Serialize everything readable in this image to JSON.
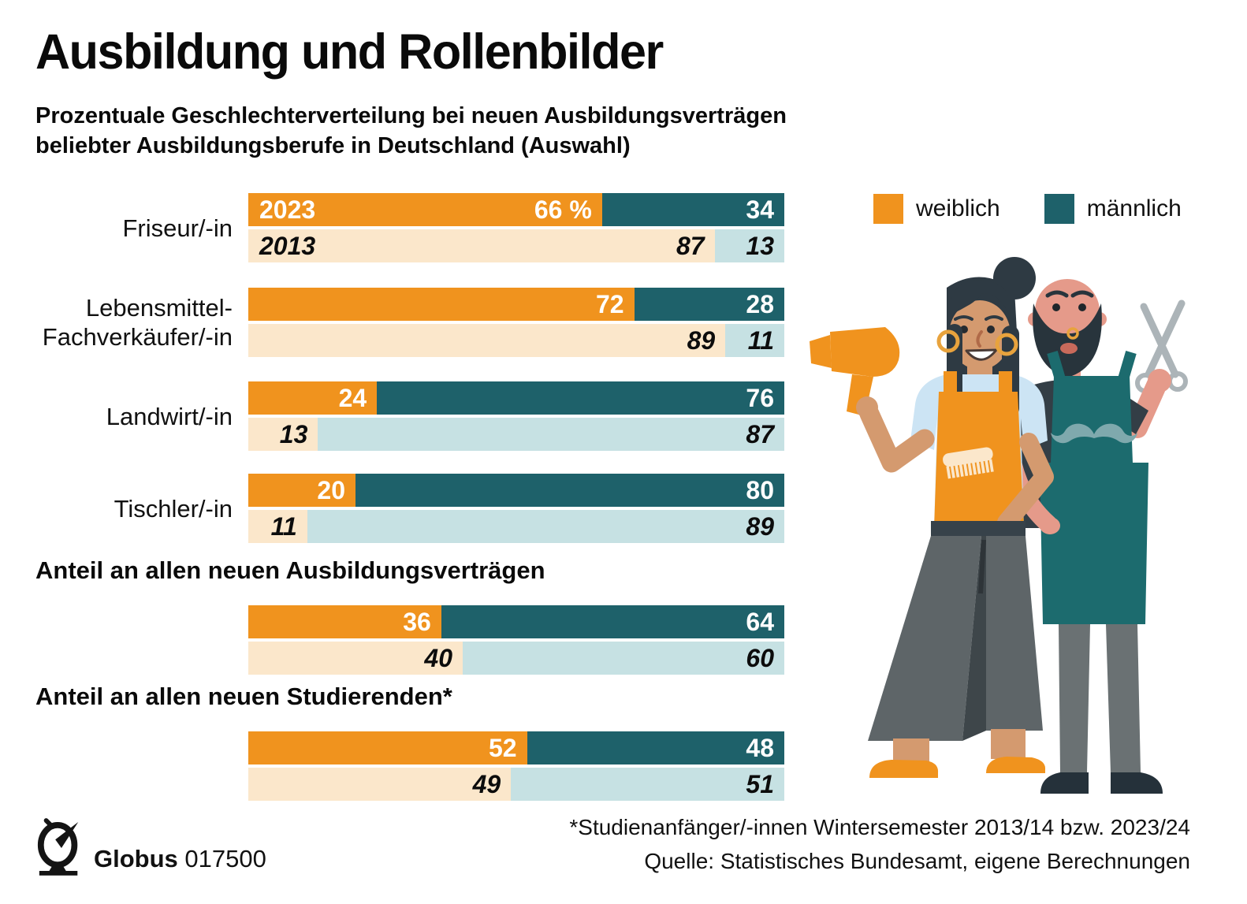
{
  "title": "Ausbildung und Rollenbilder",
  "subtitle": "Prozentuale Geschlechterverteilung bei neuen Ausbildungsverträgen\nbeliebter Ausbildungsberufe in Deutschland (Auswahl)",
  "legend": {
    "female_label": "weiblich",
    "male_label": "männlich"
  },
  "colors": {
    "female": "#F0931E",
    "male": "#1E616A",
    "female_light": "#FBE7CB",
    "male_light": "#C6E1E3",
    "apron_teal": "#1C6B6E",
    "gold": "#E8A33D"
  },
  "chart_data": {
    "type": "bar",
    "orientation": "horizontal-stacked",
    "unit": "%",
    "series": [
      "weiblich",
      "männlich"
    ],
    "years": [
      "2023",
      "2013"
    ],
    "axis_range": [
      0,
      100
    ],
    "rows": [
      {
        "kind": "group",
        "label": "Friseur/-in",
        "values_2023": [
          66,
          34
        ],
        "values_2013": [
          87,
          13
        ],
        "show_year_labels": true,
        "value_suffix_2023": " %"
      },
      {
        "kind": "group",
        "label": "Lebensmittel-\nFachverkäufer/-in",
        "values_2023": [
          72,
          28
        ],
        "values_2013": [
          89,
          11
        ]
      },
      {
        "kind": "group",
        "label": "Landwirt/-in",
        "values_2023": [
          24,
          76
        ],
        "values_2013": [
          13,
          87
        ]
      },
      {
        "kind": "group",
        "label": "Tischler/-in",
        "values_2023": [
          20,
          80
        ],
        "values_2013": [
          11,
          89
        ]
      },
      {
        "kind": "heading",
        "text": "Anteil an allen neuen Ausbildungsverträgen"
      },
      {
        "kind": "group",
        "label": "",
        "values_2023": [
          36,
          64
        ],
        "values_2013": [
          40,
          60
        ]
      },
      {
        "kind": "heading",
        "text": "Anteil an allen neuen Studierenden*"
      },
      {
        "kind": "group",
        "label": "",
        "values_2023": [
          52,
          48
        ],
        "values_2013": [
          49,
          51
        ]
      }
    ]
  },
  "footer": {
    "footnote": "*Studienanfänger/-innen Wintersemester 2013/14 bzw. 2023/24",
    "source": "Quelle: Statistisches Bundesamt, eigene Berechnungen",
    "brand": "Globus",
    "brand_number": "017500"
  },
  "illustration": {
    "icons": [
      "hair-dryer-icon",
      "scissors-icon",
      "comb-icon",
      "mustache-icon",
      "globe-logo-icon"
    ]
  }
}
